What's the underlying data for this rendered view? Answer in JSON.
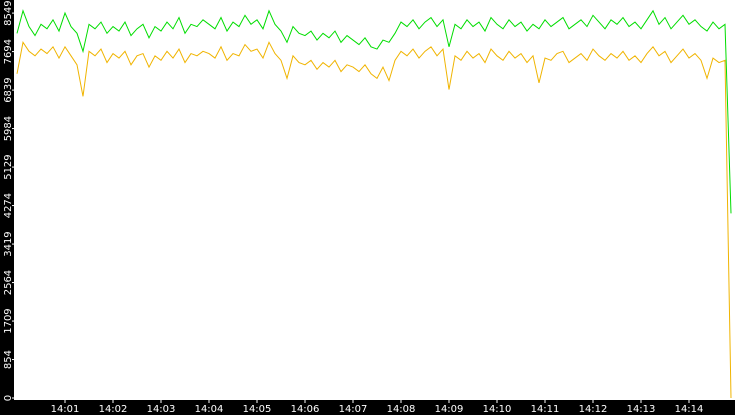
{
  "chart_data": {
    "type": "line",
    "categories": [
      null,
      null,
      null,
      null,
      null,
      null,
      null,
      null,
      "14:01",
      null,
      null,
      null,
      null,
      null,
      null,
      null,
      "14:02",
      null,
      null,
      null,
      null,
      null,
      null,
      null,
      "14:03",
      null,
      null,
      null,
      null,
      null,
      null,
      null,
      "14:04",
      null,
      null,
      null,
      null,
      null,
      null,
      null,
      "14:05",
      null,
      null,
      null,
      null,
      null,
      null,
      null,
      "14:06",
      null,
      null,
      null,
      null,
      null,
      null,
      null,
      "14:07",
      null,
      null,
      null,
      null,
      null,
      null,
      null,
      "14:08",
      null,
      null,
      null,
      null,
      null,
      null,
      null,
      "14:09",
      null,
      null,
      null,
      null,
      null,
      null,
      null,
      "14:10",
      null,
      null,
      null,
      null,
      null,
      null,
      null,
      "14:11",
      null,
      null,
      null,
      null,
      null,
      null,
      null,
      "14:12",
      null,
      null,
      null,
      null,
      null,
      null,
      null,
      "14:13",
      null,
      null,
      null,
      null,
      null,
      null,
      null,
      "14:14",
      null,
      null,
      null,
      null,
      null,
      null,
      null
    ],
    "series": [
      {
        "color": "#00dd00",
        "values": [
          8100,
          8600,
          8250,
          8050,
          8300,
          8200,
          8400,
          8150,
          8550,
          8250,
          8100,
          7700,
          8300,
          8200,
          8350,
          8100,
          8250,
          8150,
          8350,
          8050,
          8200,
          8300,
          8000,
          8250,
          8150,
          8350,
          8200,
          8450,
          8100,
          8300,
          8250,
          8400,
          8300,
          8200,
          8450,
          8150,
          8350,
          8250,
          8500,
          8300,
          8400,
          8200,
          8600,
          8300,
          8150,
          7900,
          8250,
          8100,
          8050,
          8150,
          7950,
          8100,
          8000,
          8150,
          7900,
          8050,
          7950,
          7850,
          8000,
          7800,
          7750,
          7950,
          7900,
          8100,
          8350,
          8250,
          8400,
          8200,
          8350,
          8450,
          8250,
          8400,
          7800,
          8300,
          8200,
          8400,
          8250,
          8350,
          8150,
          8450,
          8300,
          8200,
          8400,
          8250,
          8350,
          8150,
          8300,
          8200,
          8400,
          8250,
          8350,
          8450,
          8200,
          8300,
          8400,
          8250,
          8500,
          8350,
          8200,
          8400,
          8300,
          8450,
          8250,
          8350,
          8200,
          8400,
          8600,
          8300,
          8450,
          8200,
          8350,
          8500,
          8300,
          8400,
          8250,
          8150,
          8350,
          8200,
          8300,
          4100
        ]
      },
      {
        "color": "#f0b400",
        "values": [
          7200,
          7900,
          7700,
          7600,
          7750,
          7650,
          7800,
          7550,
          7800,
          7600,
          7400,
          6700,
          7700,
          7600,
          7750,
          7450,
          7650,
          7550,
          7700,
          7400,
          7600,
          7650,
          7350,
          7600,
          7500,
          7700,
          7550,
          7750,
          7450,
          7650,
          7600,
          7700,
          7650,
          7550,
          7800,
          7500,
          7650,
          7600,
          7850,
          7700,
          7750,
          7550,
          7900,
          7650,
          7500,
          7100,
          7600,
          7450,
          7400,
          7500,
          7300,
          7450,
          7350,
          7500,
          7250,
          7400,
          7350,
          7250,
          7400,
          7200,
          7100,
          7350,
          7050,
          7500,
          7700,
          7600,
          7750,
          7550,
          7700,
          7800,
          7600,
          7750,
          6850,
          7600,
          7500,
          7700,
          7550,
          7650,
          7450,
          7750,
          7600,
          7500,
          7700,
          7550,
          7650,
          7450,
          7600,
          7000,
          7550,
          7500,
          7650,
          7700,
          7450,
          7550,
          7650,
          7500,
          7750,
          7600,
          7500,
          7650,
          7550,
          7700,
          7500,
          7600,
          7450,
          7650,
          7800,
          7600,
          7700,
          7450,
          7600,
          7750,
          7550,
          7650,
          7500,
          7100,
          7550,
          7450,
          7500,
          0
        ]
      }
    ],
    "ylim": [
      0,
      8840
    ],
    "yticks": [
      0,
      854,
      1709,
      2564,
      3419,
      4274,
      5129,
      5984,
      6839,
      7694,
      8549
    ],
    "grid": false
  }
}
